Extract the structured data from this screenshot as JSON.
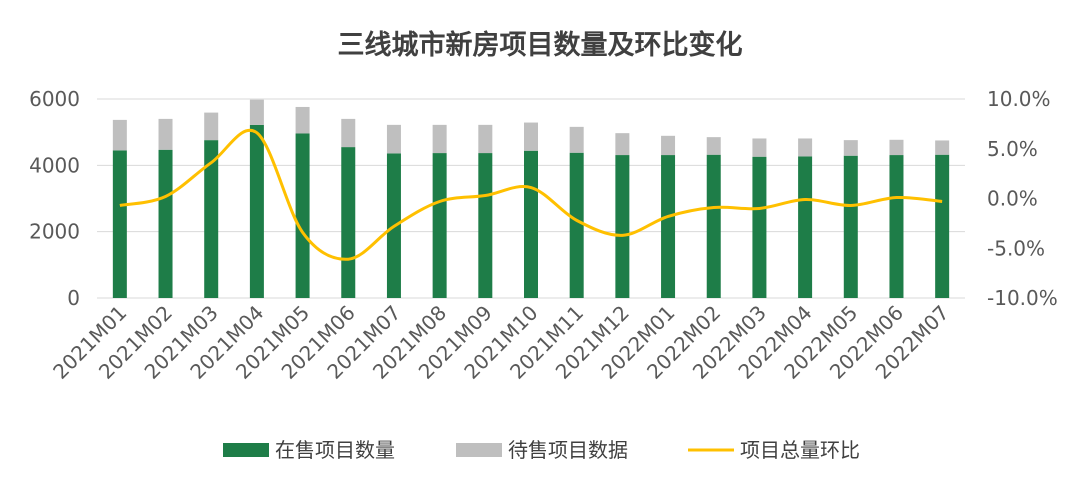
{
  "chart_data": {
    "type": "bar",
    "title": "三线城市新房项目数量及环比变化",
    "categories": [
      "2021M01",
      "2021M02",
      "2021M03",
      "2021M04",
      "2021M05",
      "2021M06",
      "2021M07",
      "2021M08",
      "2021M09",
      "2021M10",
      "2021M11",
      "2021M12",
      "2022M01",
      "2022M02",
      "2022M03",
      "2022M04",
      "2022M05",
      "2022M06",
      "2022M07"
    ],
    "series": [
      {
        "name": "在售项目数量",
        "type": "bar",
        "stacked": true,
        "axis": "left",
        "color": "#1e7d48",
        "values": [
          4450,
          4470,
          4760,
          5220,
          4960,
          4550,
          4360,
          4370,
          4370,
          4440,
          4380,
          4310,
          4310,
          4320,
          4260,
          4270,
          4290,
          4310,
          4320
        ]
      },
      {
        "name": "待售项目数据",
        "type": "bar",
        "stacked": true,
        "axis": "left",
        "color": "#bfbfbf",
        "values": [
          920,
          930,
          830,
          760,
          800,
          850,
          860,
          850,
          850,
          850,
          780,
          660,
          580,
          530,
          550,
          540,
          470,
          460,
          430
        ]
      },
      {
        "name": "项目总量环比",
        "type": "line",
        "axis": "right",
        "color": "#ffc000",
        "values": [
          -0.7,
          0.2,
          3.6,
          6.6,
          -3.4,
          -6.1,
          -2.8,
          -0.3,
          0.3,
          1.1,
          -2.2,
          -3.7,
          -1.8,
          -0.9,
          -1.0,
          -0.1,
          -0.7,
          0.1,
          -0.3
        ]
      }
    ],
    "y_left": {
      "min": 0,
      "max": 6000,
      "ticks": [
        0,
        2000,
        4000,
        6000
      ],
      "tick_labels": [
        "0",
        "2000",
        "4000",
        "6000"
      ]
    },
    "y_right": {
      "min": -10,
      "max": 10,
      "ticks": [
        -10,
        -5,
        0,
        5,
        10
      ],
      "tick_labels": [
        "-10.0%",
        "-5.0%",
        "0.0%",
        "5.0%",
        "10.0%"
      ]
    },
    "grid": true,
    "legend_position": "bottom"
  }
}
